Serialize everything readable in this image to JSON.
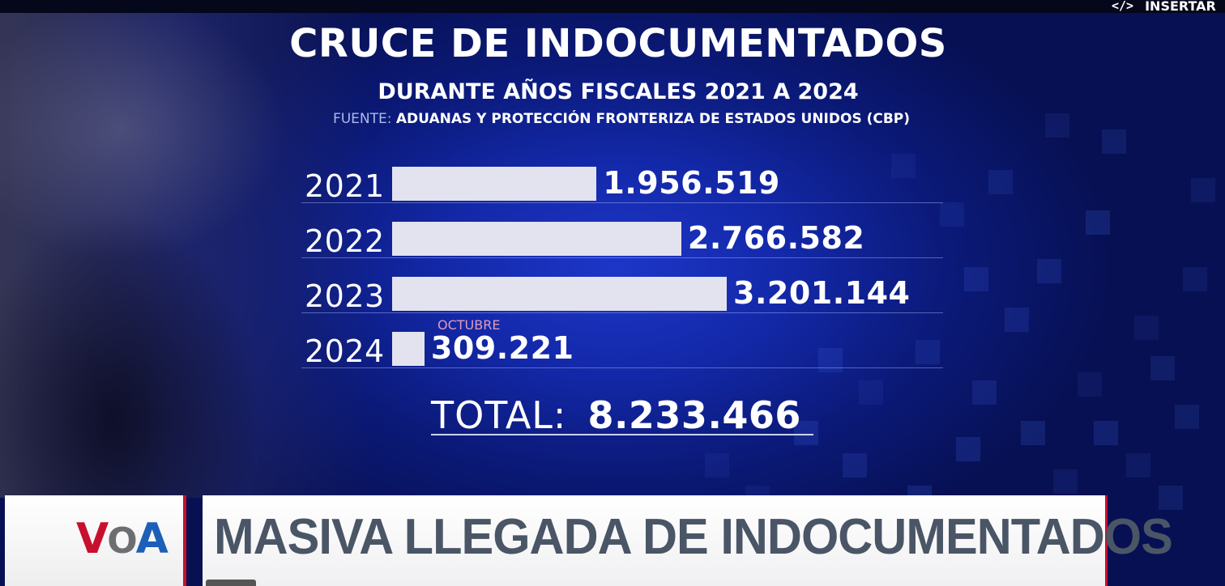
{
  "overlay": {
    "insert_label": "INSERTAR",
    "insert_icon": "code-icon"
  },
  "chart_data": {
    "type": "bar",
    "orientation": "horizontal",
    "title": "CRUCE DE INDOCUMENTADOS",
    "subtitle": "DURANTE AÑOS FISCALES 2021 A 2024",
    "source_label": "FUENTE:",
    "source_text": "ADUANAS Y PROTECCIÓN FRONTERIZA DE ESTADOS UNIDOS (CBP)",
    "categories": [
      "2021",
      "2022",
      "2023",
      "2024"
    ],
    "values": [
      1956519,
      2766582,
      3201144,
      309221
    ],
    "value_labels": [
      "1.956.519",
      "2.766.582",
      "3.201.144",
      "309.221"
    ],
    "annotation": "OCTUBRE",
    "total_label": "TOTAL:",
    "total_value": "8.233.466",
    "xlim": [
      0,
      3201144
    ],
    "bar_color": "#e3e3ef",
    "background_color": "#1328a8"
  },
  "lower_third": {
    "logo": {
      "v": "V",
      "o": "O",
      "a": "A"
    },
    "headline": "MASIVA LLEGADA DE INDOCUMENTADOS",
    "accent_color": "#c8102e"
  }
}
